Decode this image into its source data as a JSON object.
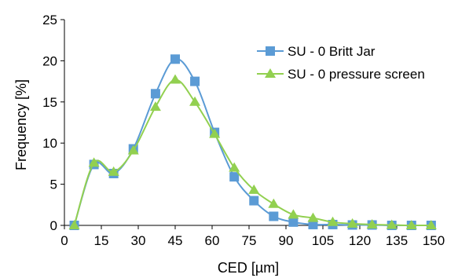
{
  "chart_data": {
    "type": "line",
    "title": "",
    "xlabel": "CED [µm]",
    "ylabel": "Frequency [%]",
    "xlim": [
      0,
      150
    ],
    "ylim": [
      0,
      25
    ],
    "x_ticks": [
      0,
      15,
      30,
      45,
      60,
      75,
      90,
      105,
      120,
      135,
      150
    ],
    "y_ticks": [
      0,
      5,
      10,
      15,
      20,
      25
    ],
    "grid": false,
    "legend_position": "top-right",
    "series": [
      {
        "name": "SU - 0 Britt Jar",
        "color": "#5B9BD5",
        "marker": "square",
        "x": [
          4,
          12,
          20,
          28,
          37,
          45,
          53,
          61,
          69,
          77,
          85,
          93,
          101,
          109,
          117,
          125,
          133,
          141,
          149
        ],
        "y": [
          0,
          7.4,
          6.3,
          9.3,
          16.0,
          20.2,
          17.5,
          11.3,
          5.9,
          3.0,
          1.1,
          0.4,
          0.1,
          0.1,
          0.05,
          0.05,
          0,
          0,
          0
        ]
      },
      {
        "name": "SU - 0 pressure screen",
        "color": "#92D050",
        "marker": "triangle",
        "x": [
          4,
          12,
          20,
          28,
          37,
          45,
          53,
          61,
          69,
          77,
          85,
          93,
          101,
          109,
          117,
          125,
          133,
          141,
          149
        ],
        "y": [
          0,
          7.6,
          6.5,
          9.1,
          14.4,
          17.7,
          15.0,
          11.1,
          7.0,
          4.3,
          2.6,
          1.3,
          0.9,
          0.4,
          0.2,
          0.1,
          0.05,
          0,
          0
        ]
      }
    ]
  }
}
